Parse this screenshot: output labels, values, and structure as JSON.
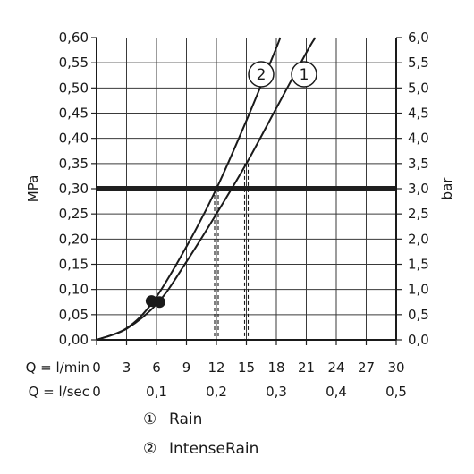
{
  "chart_data": {
    "type": "line",
    "x_axis": {
      "label": "Q = l/min",
      "range": [
        0,
        30
      ],
      "ticks": [
        "0",
        "3",
        "6",
        "9",
        "12",
        "15",
        "18",
        "21",
        "24",
        "27",
        "30"
      ]
    },
    "x_axis_secondary": {
      "label": "Q = l/sec",
      "range": [
        0,
        0.5
      ],
      "ticks": [
        "0",
        "0,1",
        "0,2",
        "0,3",
        "0,4",
        "0,5"
      ]
    },
    "y_axis_left": {
      "label": "MPa",
      "range": [
        0,
        0.6
      ],
      "ticks": [
        "0,00",
        "0,05",
        "0,10",
        "0,15",
        "0,20",
        "0,25",
        "0,30",
        "0,35",
        "0,40",
        "0,45",
        "0,50",
        "0,55",
        "0,60"
      ]
    },
    "y_axis_right": {
      "label": "bar",
      "range": [
        0,
        6
      ],
      "ticks": [
        "0,0",
        "0,5",
        "1,0",
        "1,5",
        "2,0",
        "2,5",
        "3,0",
        "3,5",
        "4,0",
        "4,5",
        "5,0",
        "5,5",
        "6,0"
      ]
    },
    "grid": true,
    "reference_line": {
      "y": 0.3
    },
    "series": [
      {
        "marker": "1",
        "x": [
          0,
          3,
          6.2,
          9,
          12,
          15,
          18,
          21,
          21.9
        ],
        "y": [
          0,
          0.022,
          0.075,
          0.155,
          0.25,
          0.35,
          0.46,
          0.57,
          0.6
        ]
      },
      {
        "marker": "2",
        "x": [
          0,
          3,
          5.7,
          9,
          12,
          15,
          17.7,
          18.4
        ],
        "y": [
          0,
          0.023,
          0.077,
          0.185,
          0.3,
          0.435,
          0.565,
          0.6
        ]
      }
    ],
    "operating_points": [
      {
        "series": "1",
        "x": 6.3,
        "y": 0.075
      },
      {
        "series": "2",
        "x": 5.5,
        "y": 0.077
      }
    ],
    "dashed_drops": [
      {
        "series": "2",
        "x": 12
      },
      {
        "series": "1",
        "x": 15
      }
    ],
    "legend": [
      {
        "marker": "①",
        "label": "Rain"
      },
      {
        "marker": "②",
        "label": "IntenseRain"
      }
    ],
    "legend_position": "bottom"
  }
}
